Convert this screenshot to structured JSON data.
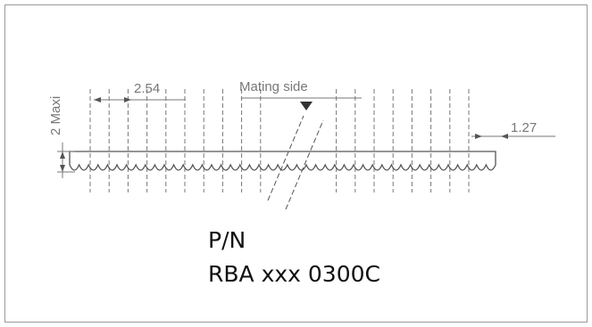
{
  "dimensions": {
    "pitch": "2.54",
    "half_pitch": "1.27",
    "height": "2 Maxi"
  },
  "mating_label": "Mating side",
  "part_number": {
    "label": "P/N",
    "value": "RBA xxx 0300C"
  }
}
